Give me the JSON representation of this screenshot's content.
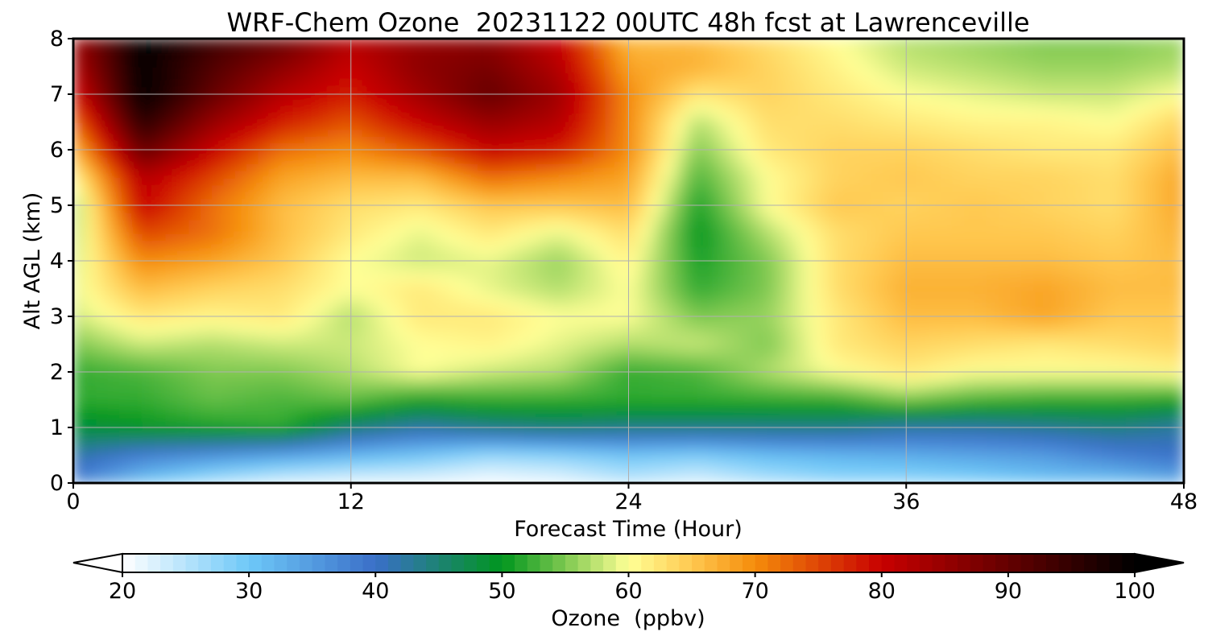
{
  "chart_data": {
    "type": "heatmap",
    "title": "WRF-Chem Ozone  20231122 00UTC 48h fcst at Lawrenceville",
    "xlabel": "Forecast Time (Hour)",
    "ylabel": "Alt AGL (km)",
    "xlim": [
      0,
      48
    ],
    "ylim": [
      0,
      8
    ],
    "x_ticks": [
      0,
      12,
      24,
      36,
      48
    ],
    "y_ticks": [
      0,
      1,
      2,
      3,
      4,
      5,
      6,
      7,
      8
    ],
    "grid": true,
    "colorbar": {
      "label": "Ozone  (ppbv)",
      "min": 20,
      "max": 100,
      "ticks": [
        20,
        30,
        40,
        50,
        60,
        70,
        80,
        90,
        100
      ],
      "extend": "both",
      "placement": "bottom"
    },
    "colormap_stops": [
      {
        "value": 20,
        "color": "#ffffff"
      },
      {
        "value": 30,
        "color": "#6ec8f8"
      },
      {
        "value": 40,
        "color": "#3a6fc8"
      },
      {
        "value": 50,
        "color": "#00961e"
      },
      {
        "value": 55,
        "color": "#7ec850"
      },
      {
        "value": 60,
        "color": "#ffff96"
      },
      {
        "value": 65,
        "color": "#ffc850"
      },
      {
        "value": 70,
        "color": "#f58c0a"
      },
      {
        "value": 80,
        "color": "#c80000"
      },
      {
        "value": 90,
        "color": "#640000"
      },
      {
        "value": 100,
        "color": "#000000"
      }
    ],
    "x": [
      0,
      3,
      6,
      9,
      12,
      15,
      18,
      21,
      24,
      27,
      30,
      33,
      36,
      39,
      42,
      45,
      48
    ],
    "y": [
      0,
      0.5,
      1,
      1.5,
      2,
      2.5,
      3,
      3.5,
      4,
      4.5,
      5,
      5.5,
      6,
      6.5,
      7,
      7.5,
      8
    ],
    "values": [
      [
        38,
        30,
        25,
        22,
        21,
        21,
        20,
        21,
        24,
        22,
        25,
        27,
        27,
        28,
        30,
        30,
        33
      ],
      [
        42,
        38,
        36,
        34,
        32,
        30,
        27,
        28,
        30,
        29,
        31,
        32,
        33,
        34,
        35,
        38,
        40
      ],
      [
        48,
        50,
        51,
        52,
        45,
        42,
        44,
        45,
        44,
        44,
        44,
        44,
        42,
        42,
        43,
        44,
        42
      ],
      [
        52,
        52,
        54,
        53,
        54,
        51,
        52,
        52,
        52,
        52,
        52,
        52,
        55,
        53,
        52,
        52,
        51
      ],
      [
        52,
        53,
        55,
        55,
        57,
        60,
        58,
        57,
        52,
        53,
        57,
        60,
        62,
        60,
        60,
        60,
        61
      ],
      [
        55,
        58,
        57,
        58,
        58,
        60,
        61,
        59,
        57,
        58,
        55,
        62,
        64,
        63,
        62,
        63,
        64
      ],
      [
        58,
        62,
        61,
        62,
        57,
        62,
        62,
        60,
        60,
        55,
        56,
        62,
        66,
        66,
        68,
        65,
        65
      ],
      [
        59,
        66,
        64,
        63,
        60,
        62,
        59,
        57,
        60,
        52,
        55,
        63,
        67,
        67,
        68,
        66,
        66
      ],
      [
        58,
        70,
        68,
        65,
        60,
        58,
        59,
        56,
        61,
        51,
        55,
        63,
        66,
        66,
        66,
        65,
        66
      ],
      [
        57,
        75,
        72,
        66,
        62,
        59,
        62,
        59,
        63,
        50,
        57,
        63,
        65,
        65,
        65,
        64,
        67
      ],
      [
        56,
        80,
        72,
        66,
        63,
        62,
        65,
        65,
        66,
        51,
        60,
        65,
        64,
        65,
        64,
        63,
        68
      ],
      [
        60,
        82,
        75,
        68,
        66,
        66,
        72,
        70,
        68,
        53,
        60,
        64,
        65,
        64,
        64,
        63,
        68
      ],
      [
        66,
        90,
        80,
        72,
        70,
        74,
        80,
        78,
        70,
        55,
        62,
        64,
        64,
        63,
        62,
        62,
        66
      ],
      [
        72,
        96,
        85,
        78,
        74,
        80,
        85,
        82,
        70,
        57,
        63,
        63,
        62,
        61,
        61,
        60,
        64
      ],
      [
        78,
        100,
        90,
        82,
        78,
        84,
        90,
        84,
        70,
        62,
        64,
        62,
        60,
        59,
        58,
        58,
        60
      ],
      [
        82,
        100,
        92,
        86,
        80,
        86,
        88,
        82,
        68,
        67,
        64,
        61,
        58,
        57,
        56,
        56,
        57
      ],
      [
        84,
        100,
        94,
        90,
        82,
        85,
        86,
        80,
        66,
        66,
        63,
        60,
        57,
        56,
        55,
        55,
        56
      ]
    ]
  }
}
